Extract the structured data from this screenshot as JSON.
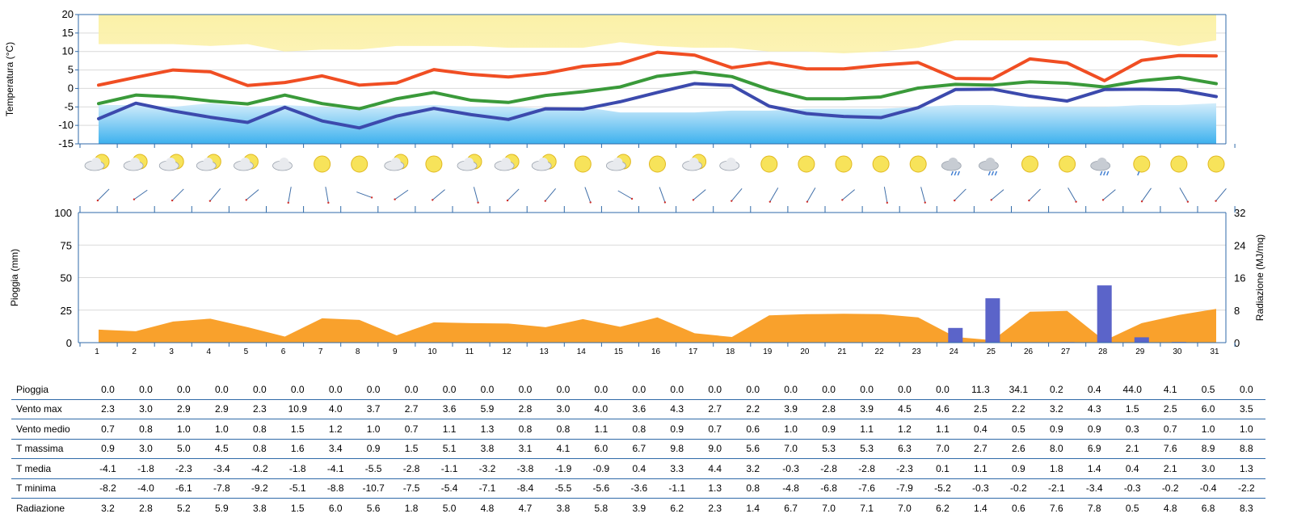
{
  "chart_data": [
    {
      "type": "line",
      "ylabel": "Temperatura (°C)",
      "ylim": [
        -15,
        20
      ],
      "yticks": [
        20,
        15,
        10,
        5,
        0,
        -5,
        -10,
        -15
      ],
      "x": [
        1,
        2,
        3,
        4,
        5,
        6,
        7,
        8,
        9,
        10,
        11,
        12,
        13,
        14,
        15,
        16,
        17,
        18,
        19,
        20,
        21,
        22,
        23,
        24,
        25,
        26,
        27,
        28,
        29,
        30,
        31
      ],
      "grid": true,
      "series": [
        {
          "key": "t_max",
          "color": "#f04e23",
          "values": [
            0.9,
            3.0,
            5.0,
            4.5,
            0.8,
            1.6,
            3.4,
            0.9,
            1.5,
            5.1,
            3.8,
            3.1,
            4.1,
            6.0,
            6.7,
            9.8,
            9.0,
            5.6,
            7.0,
            5.3,
            5.3,
            6.3,
            7.0,
            2.7,
            2.6,
            8.0,
            6.9,
            2.1,
            7.6,
            8.9,
            8.8
          ]
        },
        {
          "key": "t_media",
          "color": "#3a9a3a",
          "values": [
            -4.1,
            -1.8,
            -2.3,
            -3.4,
            -4.2,
            -1.8,
            -4.1,
            -5.5,
            -2.8,
            -1.1,
            -3.2,
            -3.8,
            -1.9,
            -0.9,
            0.4,
            3.3,
            4.4,
            3.2,
            -0.3,
            -2.8,
            -2.8,
            -2.3,
            0.1,
            1.1,
            0.9,
            1.8,
            1.4,
            0.4,
            2.1,
            3.0,
            1.3
          ]
        },
        {
          "key": "t_min",
          "color": "#3c4aad",
          "values": [
            -8.2,
            -4.0,
            -6.1,
            -7.8,
            -9.2,
            -5.1,
            -8.8,
            -10.7,
            -7.5,
            -5.4,
            -7.1,
            -8.4,
            -5.5,
            -5.6,
            -3.6,
            -1.1,
            1.3,
            0.8,
            -4.8,
            -6.8,
            -7.6,
            -7.9,
            -5.2,
            -0.3,
            -0.2,
            -2.1,
            -3.4,
            -0.3,
            -0.2,
            -0.4,
            -2.2
          ]
        }
      ],
      "bands": {
        "upper_color": "#fbf1a8",
        "upper_top": 20,
        "upper_bottom": [
          12,
          12,
          12,
          11.5,
          12,
          10,
          10.5,
          10.5,
          11.5,
          11.5,
          11.5,
          11,
          11,
          11,
          12.5,
          11.5,
          11,
          11,
          10,
          10,
          9.5,
          10,
          11,
          13,
          13,
          13,
          13,
          13,
          13,
          11.5,
          13
        ],
        "lower_color": "#3db1ee",
        "lower_bottom": -15,
        "lower_top": [
          -4.5,
          -4.5,
          -5,
          -4,
          -5,
          -4.5,
          -5,
          -5.5,
          -5,
          -4.5,
          -5,
          -5,
          -5.5,
          -5,
          -6.5,
          -6.5,
          -6.5,
          -6,
          -6,
          -5.5,
          -5.5,
          -5.5,
          -5,
          -4.5,
          -4.5,
          -5,
          -5,
          -5,
          -4.5,
          -4.5,
          -4
        ]
      }
    },
    {
      "type": "bar",
      "ylabel": "Pioggia (mm)",
      "ylabel_right": "Radiazione (MJ/mq)",
      "ylim": [
        0,
        100
      ],
      "yticks": [
        100,
        75,
        50,
        25,
        0
      ],
      "ylim_right": [
        0,
        32
      ],
      "yticks_right": [
        32,
        24,
        16,
        8,
        0
      ],
      "categories": [
        "1",
        "2",
        "3",
        "4",
        "5",
        "6",
        "7",
        "8",
        "9",
        "10",
        "11",
        "12",
        "13",
        "14",
        "15",
        "16",
        "17",
        "18",
        "19",
        "20",
        "21",
        "22",
        "23",
        "24",
        "25",
        "26",
        "27",
        "28",
        "29",
        "30",
        "31"
      ],
      "grid": true,
      "series": [
        {
          "key": "pioggia",
          "type": "bar",
          "color": "#5b64c9",
          "axis": "left",
          "values": [
            0.0,
            0.0,
            0.0,
            0.0,
            0.0,
            0.0,
            0.0,
            0.0,
            0.0,
            0.0,
            0.0,
            0.0,
            0.0,
            0.0,
            0.0,
            0.0,
            0.0,
            0.0,
            0.0,
            0.0,
            0.0,
            0.0,
            0.0,
            11.3,
            34.1,
            0.2,
            0.4,
            44.0,
            4.1,
            0.5,
            0.0
          ]
        },
        {
          "key": "radiazione",
          "type": "area",
          "color": "#f9a12c",
          "axis": "right",
          "values": [
            3.2,
            2.8,
            5.2,
            5.9,
            3.8,
            1.5,
            6.0,
            5.6,
            1.8,
            5.0,
            4.8,
            4.7,
            3.8,
            5.8,
            3.9,
            6.2,
            2.3,
            1.4,
            6.7,
            7.0,
            7.1,
            7.0,
            6.2,
            1.4,
            0.6,
            7.6,
            7.8,
            0.5,
            4.8,
            6.8,
            8.3
          ]
        }
      ]
    }
  ],
  "weather_icons": [
    "sun-cloud",
    "cloud-sun",
    "sun-cloud",
    "sun-cloud",
    "sun-cloud",
    "cloud",
    "sun",
    "sun",
    "cloud-sun",
    "sun",
    "sun-cloud",
    "sun-cloud",
    "sun-cloud",
    "sun",
    "sun-cloud",
    "sun",
    "cloud-sun",
    "cloud",
    "sun",
    "sun",
    "sun",
    "sun",
    "sun",
    "snow-cloud",
    "rain-cloud",
    "sun",
    "sun",
    "rain-cloud",
    "sun-drop",
    "sun",
    "sun"
  ],
  "wind_dir_deg": [
    135,
    145,
    135,
    130,
    140,
    100,
    80,
    20,
    145,
    140,
    75,
    135,
    130,
    70,
    30,
    70,
    140,
    130,
    120,
    120,
    140,
    80,
    75,
    135,
    140,
    135,
    60,
    140,
    125,
    60,
    130
  ],
  "table": {
    "columns": [
      "1",
      "2",
      "3",
      "4",
      "5",
      "6",
      "7",
      "8",
      "9",
      "10",
      "11",
      "12",
      "13",
      "14",
      "15",
      "16",
      "17",
      "18",
      "19",
      "20",
      "21",
      "22",
      "23",
      "24",
      "25",
      "26",
      "27",
      "28",
      "29",
      "30",
      "31"
    ],
    "rows": [
      {
        "label": "Pioggia",
        "values": [
          "0.0",
          "0.0",
          "0.0",
          "0.0",
          "0.0",
          "0.0",
          "0.0",
          "0.0",
          "0.0",
          "0.0",
          "0.0",
          "0.0",
          "0.0",
          "0.0",
          "0.0",
          "0.0",
          "0.0",
          "0.0",
          "0.0",
          "0.0",
          "0.0",
          "0.0",
          "0.0",
          "11.3",
          "34.1",
          "0.2",
          "0.4",
          "44.0",
          "4.1",
          "0.5",
          "0.0"
        ]
      },
      {
        "label": "Vento max",
        "values": [
          "2.3",
          "3.0",
          "2.9",
          "2.9",
          "2.3",
          "10.9",
          "4.0",
          "3.7",
          "2.7",
          "3.6",
          "5.9",
          "2.8",
          "3.0",
          "4.0",
          "3.6",
          "4.3",
          "2.7",
          "2.2",
          "3.9",
          "2.8",
          "3.9",
          "4.5",
          "4.6",
          "2.5",
          "2.2",
          "3.2",
          "4.3",
          "1.5",
          "2.5",
          "6.0",
          "3.5"
        ]
      },
      {
        "label": "Vento medio",
        "values": [
          "0.7",
          "0.8",
          "1.0",
          "1.0",
          "0.8",
          "1.5",
          "1.2",
          "1.0",
          "0.7",
          "1.1",
          "1.3",
          "0.8",
          "0.8",
          "1.1",
          "0.8",
          "0.9",
          "0.7",
          "0.6",
          "1.0",
          "0.9",
          "1.1",
          "1.2",
          "1.1",
          "0.4",
          "0.5",
          "0.9",
          "0.9",
          "0.3",
          "0.7",
          "1.0",
          "1.0"
        ]
      },
      {
        "label": "T massima",
        "values": [
          "0.9",
          "3.0",
          "5.0",
          "4.5",
          "0.8",
          "1.6",
          "3.4",
          "0.9",
          "1.5",
          "5.1",
          "3.8",
          "3.1",
          "4.1",
          "6.0",
          "6.7",
          "9.8",
          "9.0",
          "5.6",
          "7.0",
          "5.3",
          "5.3",
          "6.3",
          "7.0",
          "2.7",
          "2.6",
          "8.0",
          "6.9",
          "2.1",
          "7.6",
          "8.9",
          "8.8"
        ]
      },
      {
        "label": "T media",
        "values": [
          "-4.1",
          "-1.8",
          "-2.3",
          "-3.4",
          "-4.2",
          "-1.8",
          "-4.1",
          "-5.5",
          "-2.8",
          "-1.1",
          "-3.2",
          "-3.8",
          "-1.9",
          "-0.9",
          "0.4",
          "3.3",
          "4.4",
          "3.2",
          "-0.3",
          "-2.8",
          "-2.8",
          "-2.3",
          "0.1",
          "1.1",
          "0.9",
          "1.8",
          "1.4",
          "0.4",
          "2.1",
          "3.0",
          "1.3"
        ]
      },
      {
        "label": "T minima",
        "values": [
          "-8.2",
          "-4.0",
          "-6.1",
          "-7.8",
          "-9.2",
          "-5.1",
          "-8.8",
          "-10.7",
          "-7.5",
          "-5.4",
          "-7.1",
          "-8.4",
          "-5.5",
          "-5.6",
          "-3.6",
          "-1.1",
          "1.3",
          "0.8",
          "-4.8",
          "-6.8",
          "-7.6",
          "-7.9",
          "-5.2",
          "-0.3",
          "-0.2",
          "-2.1",
          "-3.4",
          "-0.3",
          "-0.2",
          "-0.4",
          "-2.2"
        ]
      },
      {
        "label": "Radiazione",
        "values": [
          "3.2",
          "2.8",
          "5.2",
          "5.9",
          "3.8",
          "1.5",
          "6.0",
          "5.6",
          "1.8",
          "5.0",
          "4.8",
          "4.7",
          "3.8",
          "5.8",
          "3.9",
          "6.2",
          "2.3",
          "1.4",
          "6.7",
          "7.0",
          "7.1",
          "7.0",
          "6.2",
          "1.4",
          "0.6",
          "7.6",
          "7.8",
          "0.5",
          "4.8",
          "6.8",
          "8.3"
        ]
      }
    ]
  }
}
